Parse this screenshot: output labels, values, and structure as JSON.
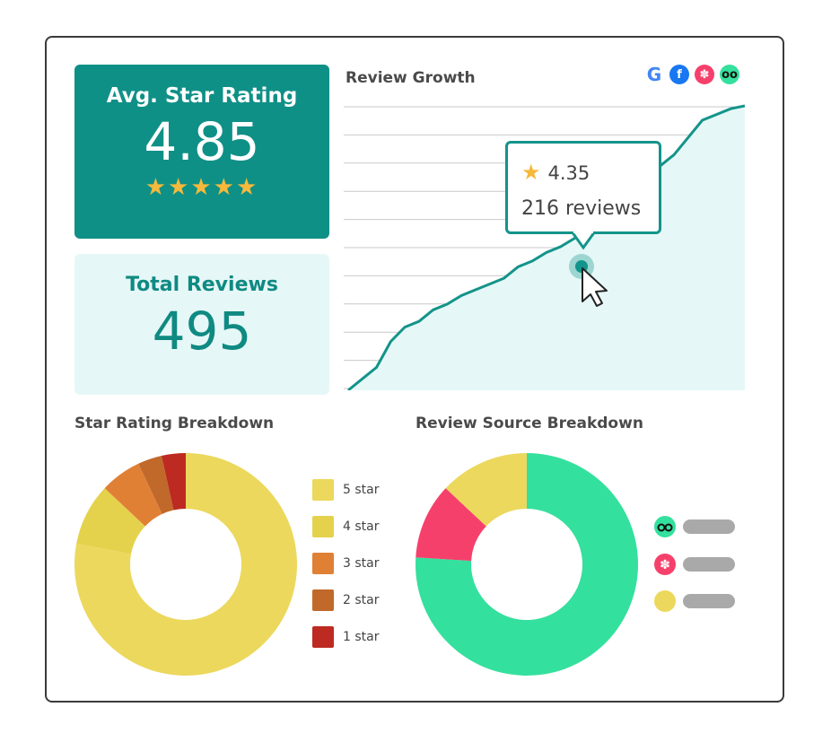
{
  "avg_rating": {
    "title": "Avg. Star Rating",
    "value": "4.85",
    "stars": "★★★★★",
    "star_fill_fraction": 0.97
  },
  "total_reviews": {
    "title": "Total Reviews",
    "value": "495"
  },
  "review_growth": {
    "title": "Review Growth",
    "source_icons": [
      "google-icon",
      "facebook-icon",
      "yelp-icon",
      "tripadvisor-icon"
    ],
    "tooltip": {
      "rating": "4.35",
      "reviews": "216 reviews"
    }
  },
  "star_breakdown": {
    "title": "Star Rating Breakdown",
    "legend": [
      "5 star",
      "4 star",
      "3 star",
      "2 star",
      "1 star"
    ]
  },
  "source_breakdown": {
    "title": "Review Source Breakdown",
    "legend_icons": [
      "tripadvisor-icon",
      "yelp-icon",
      "other-source-icon"
    ]
  },
  "colors": {
    "teal": "#0f9087",
    "teal_light": "#e6f7f7",
    "star_gold": "#f6b93b",
    "five_star": "#ecd85c",
    "four_star": "#e4d24c",
    "three_star": "#e08035",
    "two_star": "#c0692a",
    "one_star": "#bd2a22",
    "tripadvisor": "#34e09d",
    "yelp": "#f6406c",
    "other": "#ecd85c"
  },
  "chart_data": [
    {
      "type": "area",
      "title": "Review Growth",
      "x": [
        0,
        1,
        2,
        3,
        4,
        5,
        6,
        7,
        8,
        9,
        10,
        11,
        12,
        13,
        14,
        15,
        16,
        17,
        18,
        19,
        20,
        21,
        22,
        23,
        24,
        25,
        26,
        27,
        28
      ],
      "values": [
        0,
        20,
        40,
        85,
        110,
        120,
        140,
        150,
        165,
        175,
        185,
        195,
        215,
        225,
        240,
        250,
        265,
        275,
        300,
        330,
        350,
        370,
        390,
        410,
        440,
        470,
        480,
        490,
        495
      ],
      "grid": true
    },
    {
      "type": "pie",
      "title": "Star Rating Breakdown",
      "categories": [
        "5 star",
        "4 star",
        "3 star",
        "2 star",
        "1 star"
      ],
      "values": [
        78,
        9,
        6,
        3.5,
        3.5
      ]
    },
    {
      "type": "pie",
      "title": "Review Source Breakdown",
      "categories": [
        "tripadvisor",
        "yelp",
        "other"
      ],
      "values": [
        76,
        11,
        13
      ]
    }
  ]
}
